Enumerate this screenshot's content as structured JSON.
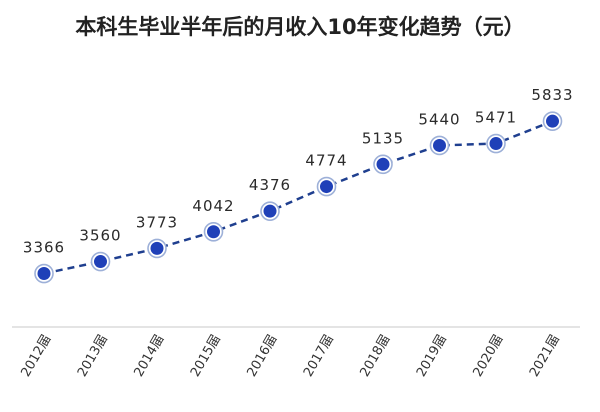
{
  "chart_data": {
    "type": "line",
    "title": "本科生毕业半年后的月收入10年变化趋势（元）",
    "categories": [
      "2012届",
      "2013届",
      "2014届",
      "2015届",
      "2016届",
      "2017届",
      "2018届",
      "2019届",
      "2020届",
      "2021届"
    ],
    "series": [
      {
        "values": [
          3366,
          3560,
          3773,
          4042,
          4376,
          4774,
          5135,
          5440,
          5471,
          5833
        ]
      }
    ],
    "ylim": [
      2500,
      6500
    ],
    "grid": false,
    "legend": "none",
    "line_style": "dashed",
    "colors": {
      "line": "#1f3f8f",
      "marker": "#1f40b8",
      "marker_ring": "#9db0d8",
      "axis": "#c8c8c8"
    }
  }
}
